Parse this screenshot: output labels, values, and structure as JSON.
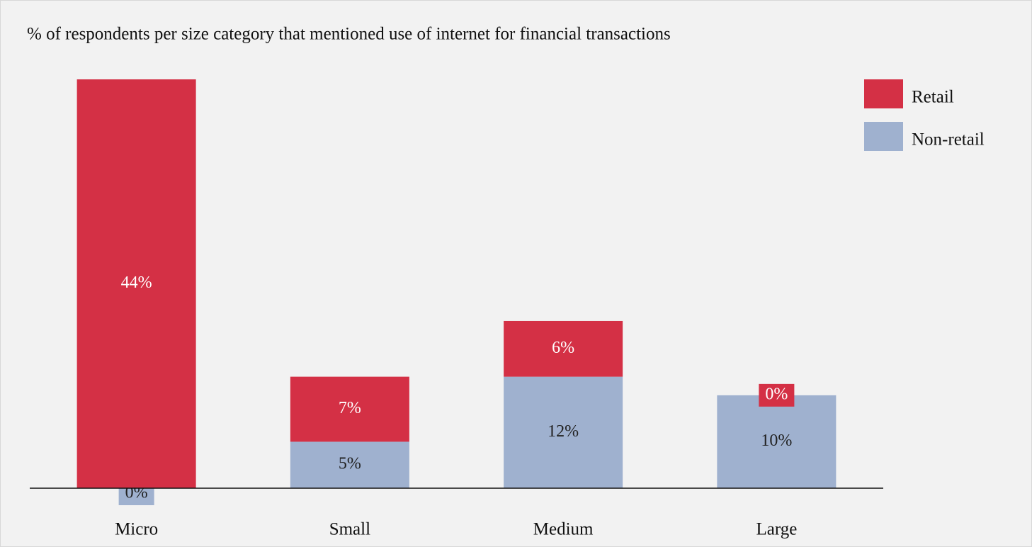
{
  "chart_data": {
    "type": "stacked_bar",
    "title": "% of respondents per size category that mentioned use of internet for financial transactions",
    "categories": [
      "Micro",
      "Small",
      "Medium",
      "Large"
    ],
    "series": [
      {
        "name": "Non-retail",
        "color": "#9fb1cf",
        "values": [
          0,
          5,
          12,
          10
        ],
        "value_labels": [
          "0%",
          "5%",
          "12%",
          "10%"
        ]
      },
      {
        "name": "Retail",
        "color": "#d43045",
        "values": [
          44,
          7,
          6,
          0
        ],
        "value_labels": [
          "44%",
          "7%",
          "6%",
          "0%"
        ]
      }
    ],
    "legend": "top-right"
  }
}
